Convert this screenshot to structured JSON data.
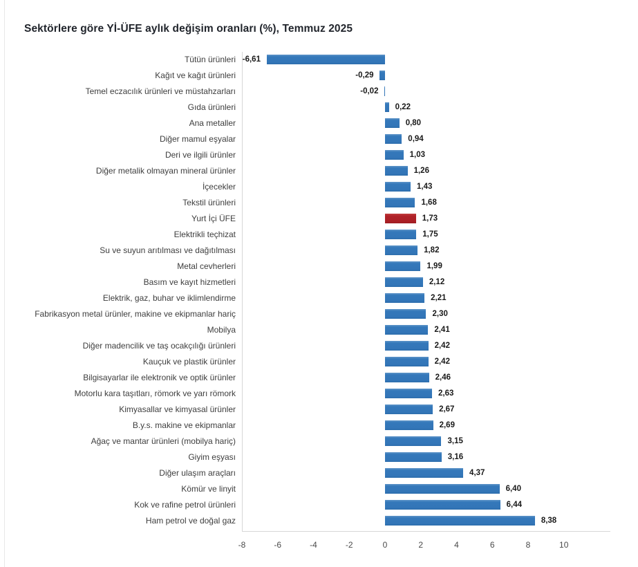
{
  "title": "Sektörlere göre Yİ-ÜFE aylık değişim oranları (%), Temmuz 2025",
  "chart_data": {
    "type": "bar",
    "orientation": "horizontal",
    "title": "Sektörlere göre Yİ-ÜFE aylık değişim oranları (%), Temmuz 2025",
    "categories": [
      "Tütün ürünleri",
      "Kağıt ve kağıt ürünleri",
      "Temel eczacılık ürünleri ve müstahzarları",
      "Gıda ürünleri",
      "Ana metaller",
      "Diğer mamul eşyalar",
      "Deri ve ilgili ürünler",
      "Diğer metalik olmayan mineral ürünler",
      "İçecekler",
      "Tekstil ürünleri",
      "Yurt İçi ÜFE",
      "Elektrikli teçhizat",
      "Su ve suyun arıtılması ve dağıtılması",
      "Metal cevherleri",
      "Basım ve kayıt hizmetleri",
      "Elektrik, gaz, buhar ve iklimlendirme",
      "Fabrikasyon metal ürünler, makine ve ekipmanlar hariç",
      "Mobilya",
      "Diğer madencilik ve taş ocakçılığı ürünleri",
      "Kauçuk ve plastik ürünler",
      "Bilgisayarlar ile elektronik ve optik ürünler",
      "Motorlu kara taşıtları, römork ve yarı römork",
      "Kimyasallar ve kimyasal ürünler",
      "B.y.s. makine ve ekipmanlar",
      "Ağaç ve mantar ürünleri (mobilya hariç)",
      "Giyim eşyası",
      "Diğer ulaşım araçları",
      "Kömür ve linyit",
      "Kok ve rafine petrol ürünleri",
      "Ham petrol ve doğal gaz"
    ],
    "values": [
      -6.61,
      -0.29,
      -0.02,
      0.22,
      0.8,
      0.94,
      1.03,
      1.26,
      1.43,
      1.68,
      1.73,
      1.75,
      1.82,
      1.99,
      2.12,
      2.21,
      2.3,
      2.41,
      2.42,
      2.42,
      2.46,
      2.63,
      2.67,
      2.69,
      3.15,
      3.16,
      4.37,
      6.4,
      6.44,
      8.38
    ],
    "value_labels": [
      "-6,61",
      "-0,29",
      "-0,02",
      "0,22",
      "0,80",
      "0,94",
      "1,03",
      "1,26",
      "1,43",
      "1,68",
      "1,73",
      "1,75",
      "1,82",
      "1,99",
      "2,12",
      "2,21",
      "2,30",
      "2,41",
      "2,42",
      "2,42",
      "2,46",
      "2,63",
      "2,67",
      "2,69",
      "3,15",
      "3,16",
      "4,37",
      "6,40",
      "6,44",
      "8,38"
    ],
    "highlight_index": 10,
    "highlight_category": "Yurt İçi ÜFE",
    "xlim": [
      -8,
      12.6
    ],
    "x_ticks": [
      -8,
      -6,
      -4,
      -2,
      0,
      2,
      4,
      6,
      8,
      10
    ],
    "x_tick_labels": [
      "-8",
      "-6",
      "-4",
      "-2",
      "0",
      "2",
      "4",
      "6",
      "8",
      "10"
    ],
    "xlabel": "",
    "ylabel": "",
    "grid": false,
    "legend": false,
    "bar_color": "#3478ba",
    "highlight_color": "#b02228",
    "axis_line_color": "#d6d6d6",
    "label_color": "#3d3d3d",
    "value_label_color": "#191919",
    "title_color": "#21252c",
    "background": "#ffffff"
  }
}
